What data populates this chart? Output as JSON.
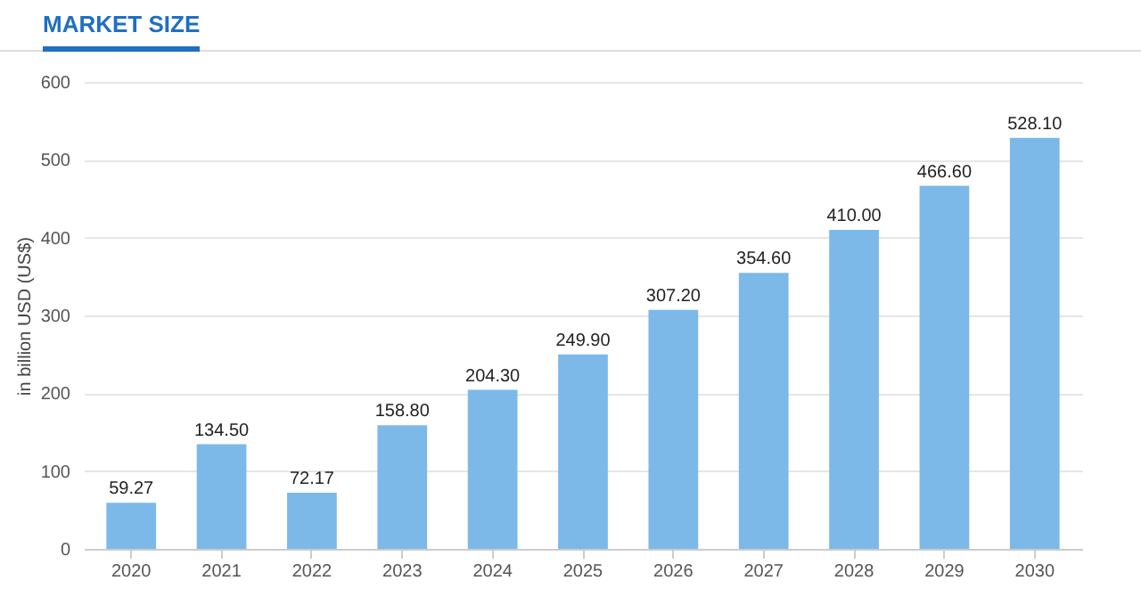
{
  "chart_data": {
    "type": "bar",
    "title": "MARKET SIZE",
    "ylabel": "in billion USD (US$)",
    "categories": [
      "2020",
      "2021",
      "2022",
      "2023",
      "2024",
      "2025",
      "2026",
      "2027",
      "2028",
      "2029",
      "2030"
    ],
    "values": [
      59.27,
      134.5,
      72.17,
      158.8,
      204.3,
      249.9,
      307.2,
      354.6,
      410.0,
      466.6,
      528.1
    ],
    "value_labels": [
      "59.27",
      "134.50",
      "72.17",
      "158.80",
      "204.30",
      "249.90",
      "307.20",
      "354.60",
      "410.00",
      "466.60",
      "528.10"
    ],
    "color": "#7cb9e8",
    "ylim": [
      0,
      600
    ],
    "yticks": [
      0,
      100,
      200,
      300,
      400,
      500,
      600
    ],
    "grid": "y"
  }
}
